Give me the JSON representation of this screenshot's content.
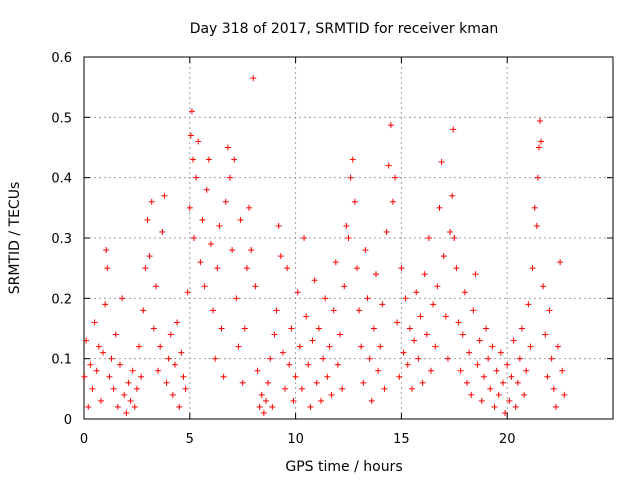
{
  "chart_data": {
    "type": "scatter",
    "title": "Day 318 of 2017, SRMTID for receiver kman",
    "xlabel": "GPS time / hours",
    "ylabel": "SRMTID / TECUs",
    "xlim": [
      0,
      25
    ],
    "ylim": [
      0,
      0.6
    ],
    "xticks": [
      "0",
      "5",
      "10",
      "15",
      "20"
    ],
    "yticks": [
      "0",
      "0.1",
      "0.2",
      "0.3",
      "0.4",
      "0.5",
      "0.6"
    ],
    "grid": true,
    "marker": "+",
    "color": "#ff0000",
    "series": [
      {
        "points": [
          [
            0.02,
            0.07
          ],
          [
            0.1,
            0.13
          ],
          [
            0.2,
            0.02
          ],
          [
            0.3,
            0.09
          ],
          [
            0.4,
            0.05
          ],
          [
            0.5,
            0.16
          ],
          [
            0.6,
            0.08
          ],
          [
            0.7,
            0.12
          ],
          [
            0.8,
            0.03
          ],
          [
            0.9,
            0.11
          ],
          [
            1.0,
            0.19
          ],
          [
            1.05,
            0.28
          ],
          [
            1.1,
            0.25
          ],
          [
            1.2,
            0.07
          ],
          [
            1.3,
            0.1
          ],
          [
            1.4,
            0.05
          ],
          [
            1.5,
            0.14
          ],
          [
            1.6,
            0.02
          ],
          [
            1.7,
            0.09
          ],
          [
            1.8,
            0.2
          ],
          [
            1.9,
            0.04
          ],
          [
            2.0,
            0.01
          ],
          [
            2.1,
            0.06
          ],
          [
            2.2,
            0.03
          ],
          [
            2.3,
            0.08
          ],
          [
            2.4,
            0.02
          ],
          [
            2.5,
            0.05
          ],
          [
            2.6,
            0.12
          ],
          [
            2.7,
            0.07
          ],
          [
            2.8,
            0.18
          ],
          [
            2.9,
            0.25
          ],
          [
            3.0,
            0.33
          ],
          [
            3.1,
            0.27
          ],
          [
            3.2,
            0.36
          ],
          [
            3.3,
            0.15
          ],
          [
            3.4,
            0.22
          ],
          [
            3.5,
            0.08
          ],
          [
            3.6,
            0.12
          ],
          [
            3.7,
            0.31
          ],
          [
            3.8,
            0.37
          ],
          [
            3.9,
            0.06
          ],
          [
            4.0,
            0.1
          ],
          [
            4.1,
            0.14
          ],
          [
            4.2,
            0.04
          ],
          [
            4.3,
            0.09
          ],
          [
            4.4,
            0.16
          ],
          [
            4.5,
            0.02
          ],
          [
            4.6,
            0.11
          ],
          [
            4.7,
            0.07
          ],
          [
            4.8,
            0.05
          ],
          [
            4.9,
            0.21
          ],
          [
            5.0,
            0.35
          ],
          [
            5.05,
            0.47
          ],
          [
            5.1,
            0.51
          ],
          [
            5.15,
            0.43
          ],
          [
            5.2,
            0.3
          ],
          [
            5.3,
            0.4
          ],
          [
            5.4,
            0.46
          ],
          [
            5.5,
            0.26
          ],
          [
            5.6,
            0.33
          ],
          [
            5.7,
            0.22
          ],
          [
            5.8,
            0.38
          ],
          [
            5.9,
            0.43
          ],
          [
            6.0,
            0.29
          ],
          [
            6.1,
            0.18
          ],
          [
            6.2,
            0.1
          ],
          [
            6.3,
            0.25
          ],
          [
            6.4,
            0.32
          ],
          [
            6.5,
            0.15
          ],
          [
            6.6,
            0.07
          ],
          [
            6.7,
            0.36
          ],
          [
            6.8,
            0.45
          ],
          [
            6.9,
            0.4
          ],
          [
            7.0,
            0.28
          ],
          [
            7.1,
            0.43
          ],
          [
            7.2,
            0.2
          ],
          [
            7.3,
            0.12
          ],
          [
            7.4,
            0.33
          ],
          [
            7.5,
            0.06
          ],
          [
            7.6,
            0.15
          ],
          [
            7.7,
            0.25
          ],
          [
            7.8,
            0.35
          ],
          [
            7.9,
            0.28
          ],
          [
            8.0,
            0.565
          ],
          [
            8.1,
            0.22
          ],
          [
            8.2,
            0.08
          ],
          [
            8.3,
            0.02
          ],
          [
            8.4,
            0.04
          ],
          [
            8.5,
            0.01
          ],
          [
            8.6,
            0.03
          ],
          [
            8.7,
            0.06
          ],
          [
            8.8,
            0.1
          ],
          [
            8.9,
            0.02
          ],
          [
            9.0,
            0.14
          ],
          [
            9.1,
            0.18
          ],
          [
            9.2,
            0.32
          ],
          [
            9.3,
            0.27
          ],
          [
            9.4,
            0.11
          ],
          [
            9.5,
            0.05
          ],
          [
            9.6,
            0.25
          ],
          [
            9.7,
            0.09
          ],
          [
            9.8,
            0.15
          ],
          [
            9.9,
            0.03
          ],
          [
            10.0,
            0.07
          ],
          [
            10.1,
            0.21
          ],
          [
            10.2,
            0.12
          ],
          [
            10.3,
            0.05
          ],
          [
            10.4,
            0.3
          ],
          [
            10.5,
            0.17
          ],
          [
            10.6,
            0.09
          ],
          [
            10.7,
            0.02
          ],
          [
            10.8,
            0.13
          ],
          [
            10.9,
            0.23
          ],
          [
            11.0,
            0.06
          ],
          [
            11.1,
            0.15
          ],
          [
            11.2,
            0.03
          ],
          [
            11.3,
            0.1
          ],
          [
            11.4,
            0.2
          ],
          [
            11.5,
            0.07
          ],
          [
            11.6,
            0.12
          ],
          [
            11.7,
            0.04
          ],
          [
            11.8,
            0.18
          ],
          [
            11.9,
            0.26
          ],
          [
            12.0,
            0.09
          ],
          [
            12.1,
            0.14
          ],
          [
            12.2,
            0.05
          ],
          [
            12.3,
            0.22
          ],
          [
            12.4,
            0.32
          ],
          [
            12.5,
            0.3
          ],
          [
            12.6,
            0.4
          ],
          [
            12.7,
            0.43
          ],
          [
            12.8,
            0.36
          ],
          [
            12.9,
            0.25
          ],
          [
            13.0,
            0.18
          ],
          [
            13.1,
            0.12
          ],
          [
            13.2,
            0.06
          ],
          [
            13.3,
            0.28
          ],
          [
            13.4,
            0.2
          ],
          [
            13.5,
            0.1
          ],
          [
            13.6,
            0.03
          ],
          [
            13.7,
            0.15
          ],
          [
            13.8,
            0.24
          ],
          [
            13.9,
            0.08
          ],
          [
            14.0,
            0.12
          ],
          [
            14.1,
            0.19
          ],
          [
            14.2,
            0.05
          ],
          [
            14.3,
            0.31
          ],
          [
            14.4,
            0.42
          ],
          [
            14.5,
            0.487
          ],
          [
            14.6,
            0.36
          ],
          [
            14.7,
            0.4
          ],
          [
            14.8,
            0.16
          ],
          [
            14.9,
            0.07
          ],
          [
            15.0,
            0.25
          ],
          [
            15.1,
            0.11
          ],
          [
            15.2,
            0.2
          ],
          [
            15.3,
            0.09
          ],
          [
            15.4,
            0.15
          ],
          [
            15.5,
            0.05
          ],
          [
            15.6,
            0.13
          ],
          [
            15.7,
            0.21
          ],
          [
            15.8,
            0.1
          ],
          [
            15.9,
            0.17
          ],
          [
            16.0,
            0.06
          ],
          [
            16.1,
            0.24
          ],
          [
            16.2,
            0.14
          ],
          [
            16.3,
            0.3
          ],
          [
            16.4,
            0.08
          ],
          [
            16.5,
            0.19
          ],
          [
            16.6,
            0.12
          ],
          [
            16.7,
            0.22
          ],
          [
            16.8,
            0.35
          ],
          [
            16.9,
            0.426
          ],
          [
            17.0,
            0.27
          ],
          [
            17.1,
            0.17
          ],
          [
            17.2,
            0.1
          ],
          [
            17.3,
            0.31
          ],
          [
            17.4,
            0.37
          ],
          [
            17.45,
            0.48
          ],
          [
            17.5,
            0.3
          ],
          [
            17.6,
            0.25
          ],
          [
            17.7,
            0.16
          ],
          [
            17.8,
            0.08
          ],
          [
            17.9,
            0.14
          ],
          [
            18.0,
            0.21
          ],
          [
            18.1,
            0.06
          ],
          [
            18.2,
            0.11
          ],
          [
            18.3,
            0.04
          ],
          [
            18.4,
            0.18
          ],
          [
            18.5,
            0.24
          ],
          [
            18.6,
            0.09
          ],
          [
            18.7,
            0.13
          ],
          [
            18.8,
            0.03
          ],
          [
            18.9,
            0.07
          ],
          [
            19.0,
            0.15
          ],
          [
            19.1,
            0.1
          ],
          [
            19.2,
            0.05
          ],
          [
            19.3,
            0.12
          ],
          [
            19.4,
            0.02
          ],
          [
            19.5,
            0.08
          ],
          [
            19.6,
            0.04
          ],
          [
            19.7,
            0.11
          ],
          [
            19.8,
            0.06
          ],
          [
            19.9,
            0.01
          ],
          [
            20.0,
            0.09
          ],
          [
            20.1,
            0.03
          ],
          [
            20.2,
            0.07
          ],
          [
            20.3,
            0.13
          ],
          [
            20.4,
            0.02
          ],
          [
            20.5,
            0.06
          ],
          [
            20.6,
            0.1
          ],
          [
            20.7,
            0.15
          ],
          [
            20.8,
            0.04
          ],
          [
            20.9,
            0.08
          ],
          [
            21.0,
            0.19
          ],
          [
            21.1,
            0.12
          ],
          [
            21.2,
            0.25
          ],
          [
            21.3,
            0.35
          ],
          [
            21.4,
            0.32
          ],
          [
            21.45,
            0.4
          ],
          [
            21.5,
            0.45
          ],
          [
            21.55,
            0.494
          ],
          [
            21.6,
            0.46
          ],
          [
            21.7,
            0.22
          ],
          [
            21.8,
            0.14
          ],
          [
            21.9,
            0.07
          ],
          [
            22.0,
            0.18
          ],
          [
            22.1,
            0.1
          ],
          [
            22.2,
            0.05
          ],
          [
            22.3,
            0.02
          ],
          [
            22.4,
            0.12
          ],
          [
            22.5,
            0.26
          ],
          [
            22.6,
            0.08
          ],
          [
            22.7,
            0.04
          ]
        ]
      }
    ]
  }
}
